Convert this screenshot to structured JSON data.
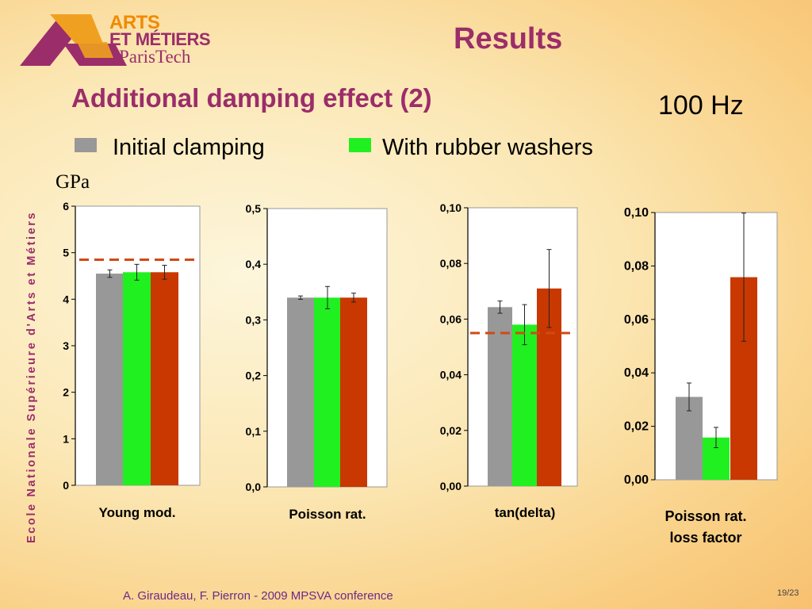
{
  "logo": {
    "line1": "ARTS",
    "line2": "ET MÉTIERS",
    "line3": "ParisTech"
  },
  "title": "Results",
  "subtitle": "Additional damping effect (2)",
  "frequency": "100 Hz",
  "legend": [
    {
      "label": "Initial clamping",
      "color": "#989898"
    },
    {
      "label": "With rubber washers",
      "color": "#20f020"
    }
  ],
  "unit_label": "GPa",
  "vertical_text": "Ecole Nationale Supérieure d'Arts et Métiers",
  "footer": "A. Giraudeau, F. Pierron - 2009 MPSVA conference",
  "page_number": "19/23",
  "colors": {
    "initial": "#989898",
    "rubber": "#20f020",
    "third": "#c83800",
    "reference_line": "#d04a14",
    "title": "#9b2d6a"
  },
  "chart_data": [
    {
      "type": "bar",
      "xlabel": [
        "Young mod."
      ],
      "ylim": [
        0,
        6
      ],
      "ticks": [
        "0",
        "1",
        "2",
        "3",
        "4",
        "5",
        "6"
      ],
      "values": [
        4.55,
        4.58,
        4.58
      ],
      "errors": [
        0.08,
        0.17,
        0.15
      ],
      "reference_line": 4.85
    },
    {
      "type": "bar",
      "xlabel": [
        "Poisson rat."
      ],
      "ylim": [
        0,
        0.5
      ],
      "ticks": [
        "0,0",
        "0,1",
        "0,2",
        "0,3",
        "0,4",
        "0,5"
      ],
      "values": [
        0.34,
        0.34,
        0.34
      ],
      "errors": [
        0.003,
        0.02,
        0.008
      ],
      "reference_line": null
    },
    {
      "type": "bar",
      "xlabel": [
        "tan(delta)"
      ],
      "ylim": [
        0,
        0.1
      ],
      "ticks": [
        "0,00",
        "0,02",
        "0,04",
        "0,06",
        "0,08",
        "0,10"
      ],
      "values": [
        0.0643,
        0.058,
        0.071
      ],
      "errors": [
        0.0022,
        0.0072,
        0.014
      ],
      "reference_line": 0.055
    },
    {
      "type": "bar",
      "xlabel": [
        "Poisson rat.",
        "loss factor"
      ],
      "ylim": [
        0,
        0.1
      ],
      "ticks": [
        "0,00",
        "0,02",
        "0,04",
        "0,06",
        "0,08",
        "0,10"
      ],
      "values": [
        0.031,
        0.0158,
        0.0758
      ],
      "errors": [
        0.0052,
        0.0038,
        0.024
      ],
      "reference_line": null
    }
  ]
}
